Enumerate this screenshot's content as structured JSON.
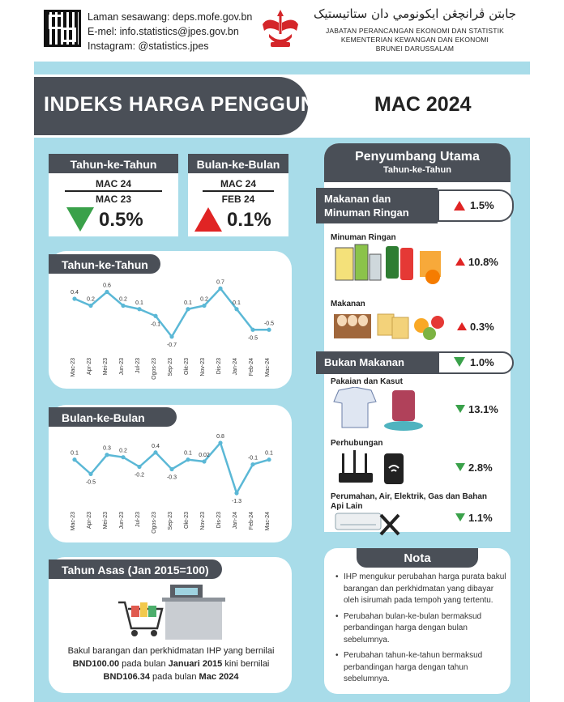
{
  "header": {
    "contact": [
      "Laman sesawang: deps.mofe.gov.bn",
      "E-mel: info.statistics@jpes.gov.bn",
      "Instagram: @statistics.jpes"
    ],
    "jawi": "جابتن ڤرانچڠن ايکونومي دان ستاتيستيک",
    "dept": [
      "JABATAN PERANCANGAN EKONOMI DAN STATISTIK",
      "KEMENTERIAN KEWANGAN DAN EKONOMI",
      "BRUNEI DARUSSALAM"
    ]
  },
  "title": "INDEKS HARGA PENGGUNA",
  "month": "MAC 2024",
  "cards": [
    {
      "tab": "Tahun-ke-Tahun",
      "line1": "MAC 24",
      "line2": "MAC 23",
      "direction": "down",
      "value": "0.5%"
    },
    {
      "tab": "Bulan-ke-Bulan",
      "line1": "MAC 24",
      "line2": "FEB 24",
      "direction": "up",
      "value": "0.1%"
    }
  ],
  "colors": {
    "down": "#3aa14a",
    "up": "#e02424",
    "line": "#5bb8d6",
    "dark": "#4a4f57"
  },
  "chart_data": [
    {
      "type": "line",
      "title": "Tahun-ke-Tahun",
      "x": [
        "Mac-23",
        "Apr-23",
        "Mei-23",
        "Jun-23",
        "Jul-23",
        "Ogos-23",
        "Sep-23",
        "Okt-23",
        "Nov-23",
        "Dis-23",
        "Jan-24",
        "Feb-24",
        "Mac-24"
      ],
      "values": [
        0.4,
        0.2,
        0.6,
        0.2,
        0.1,
        -0.1,
        -0.7,
        0.1,
        0.2,
        0.7,
        0.1,
        -0.5,
        -0.5
      ],
      "labels": [
        "0.4",
        "0.2",
        "0.6",
        "0.2",
        "0.1",
        "-0.1",
        "-0.7",
        "0.1",
        "0.2",
        "0.7",
        "0.1",
        "-0.5",
        "-0.5"
      ],
      "ylim": [
        -0.8,
        0.8
      ],
      "grid": false
    },
    {
      "type": "line",
      "title": "Bulan-ke-Bulan",
      "x": [
        "Mac-23",
        "Apr-23",
        "Mei-23",
        "Jun-23",
        "Jul-23",
        "Ogos-23",
        "Sep-23",
        "Okt-23",
        "Nov-23",
        "Dis-23",
        "Jan-24",
        "Feb-24",
        "Mac-24"
      ],
      "values": [
        0.1,
        -0.5,
        0.3,
        0.2,
        -0.2,
        0.4,
        -0.3,
        0.1,
        0.02,
        0.8,
        -1.3,
        -0.1,
        0.1
      ],
      "labels": [
        "0.1",
        "-0.5",
        "0.3",
        "0.2",
        "-0.2",
        "0.4",
        "-0.3",
        "0.1",
        "0.02",
        "0.8",
        "-1.3",
        "-0.1",
        "0.1"
      ],
      "ylim": [
        -1.4,
        0.9
      ],
      "grid": false
    }
  ],
  "contributors": {
    "title": "Penyumbang Utama",
    "subtitle": "Tahun-ke-Tahun",
    "categories": [
      {
        "label_line1": "Makanan dan",
        "label_line2": "Minuman Ringan",
        "direction": "up",
        "value": "1.5%",
        "items": [
          {
            "label": "Minuman Ringan",
            "direction": "up",
            "value": "10.8%"
          },
          {
            "label": "Makanan",
            "direction": "up",
            "value": "0.3%"
          }
        ]
      },
      {
        "label_line1": "Bukan Makanan",
        "label_line2": "",
        "direction": "down",
        "value": "1.0%",
        "items": [
          {
            "label": "Pakaian dan Kasut",
            "direction": "down",
            "value": "13.1%"
          },
          {
            "label": "Perhubungan",
            "direction": "down",
            "value": "2.8%"
          },
          {
            "label": "Perumahan, Air, Elektrik, Gas dan Bahan Api Lain",
            "direction": "down",
            "value": "1.1%"
          }
        ]
      }
    ]
  },
  "base": {
    "tab": "Tahun Asas (Jan 2015=100)",
    "text_pre": "Bakul barangan dan perkhidmatan IHP yang bernilai ",
    "amount1": "BND100.00",
    "text_mid1": " pada bulan ",
    "period1": "Januari 2015",
    "text_mid2": " kini bernilai ",
    "amount2": "BND106.34",
    "text_mid3": " pada bulan ",
    "period2": "Mac 2024"
  },
  "nota": {
    "title": "Nota",
    "items": [
      "IHP mengukur perubahan harga purata bakul barangan dan perkhidmatan yang dibayar oleh isirumah pada tempoh yang tertentu.",
      "Perubahan bulan-ke-bulan bermaksud perbandingan harga dengan bulan sebelumnya.",
      "Perubahan tahun-ke-tahun bermaksud perbandingan harga dengan tahun sebelumnya."
    ]
  }
}
